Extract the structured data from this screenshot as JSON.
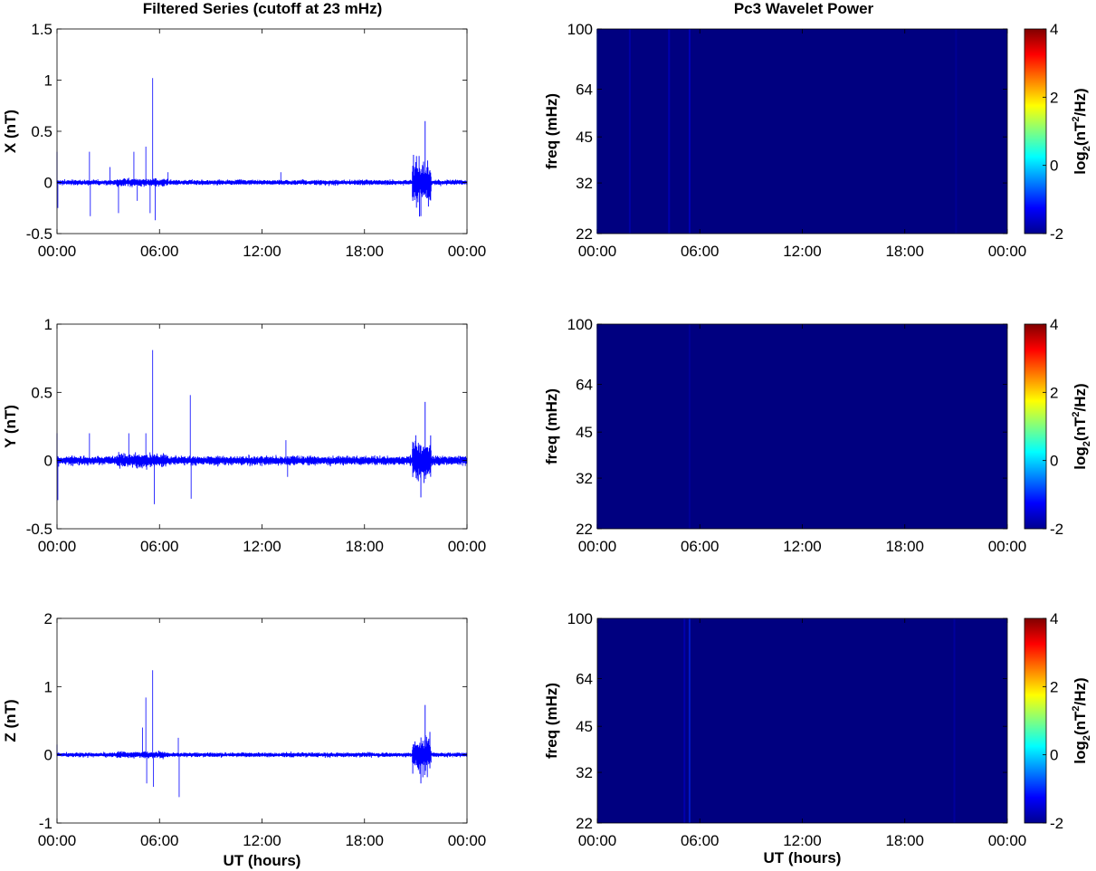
{
  "titles": {
    "left": "Filtered Series (cutoff at 23 mHz)",
    "right": "Pc3 Wavelet Power"
  },
  "xlabel": "UT (hours)",
  "colorbar": {
    "label_main": "log",
    "label_sub": "2",
    "label_paren_open": "(nT",
    "label_sup": "2",
    "label_tail": "/Hz)",
    "ticks": [
      "-2",
      "0",
      "2",
      "4"
    ],
    "range": [
      -2,
      4
    ],
    "colormap": "jet"
  },
  "colors": {
    "trace": "#0000ff",
    "background_power": "#00008f"
  },
  "chart_data": [
    {
      "type": "line",
      "panel": "X time series",
      "ylabel": "X (nT)",
      "xlim": [
        "00:00",
        "00:00"
      ],
      "xticks": [
        "00:00",
        "06:00",
        "12:00",
        "18:00",
        "00:00"
      ],
      "ylim": [
        -0.5,
        1.5
      ],
      "yticks": [
        "-0.5",
        "0",
        "0.5",
        "1",
        "1.5"
      ],
      "noise_amplitude": 0.03,
      "spikes": [
        {
          "t": 0.0,
          "v": 0.3
        },
        {
          "t": 0.05,
          "v": -0.25
        },
        {
          "t": 1.9,
          "v": 0.3
        },
        {
          "t": 1.95,
          "v": -0.33
        },
        {
          "t": 3.1,
          "v": 0.15
        },
        {
          "t": 3.6,
          "v": -0.3
        },
        {
          "t": 4.5,
          "v": 0.3
        },
        {
          "t": 4.7,
          "v": -0.18
        },
        {
          "t": 5.2,
          "v": 0.35
        },
        {
          "t": 5.45,
          "v": -0.3
        },
        {
          "t": 5.6,
          "v": 1.02
        },
        {
          "t": 5.75,
          "v": -0.37
        },
        {
          "t": 6.5,
          "v": 0.1
        },
        {
          "t": 13.1,
          "v": 0.1
        }
      ],
      "bursts": [
        {
          "t0": 20.8,
          "t1": 21.9,
          "amp": 0.35,
          "peak": 0.6,
          "trough": -0.33
        }
      ]
    },
    {
      "type": "line",
      "panel": "Y time series",
      "ylabel": "Y (nT)",
      "xlim": [
        "00:00",
        "00:00"
      ],
      "xticks": [
        "00:00",
        "06:00",
        "12:00",
        "18:00",
        "00:00"
      ],
      "ylim": [
        -0.5,
        1
      ],
      "yticks": [
        "-0.5",
        "0",
        "0.5",
        "1"
      ],
      "noise_amplitude": 0.04,
      "spikes": [
        {
          "t": 0.0,
          "v": 0.2
        },
        {
          "t": 0.05,
          "v": -0.29
        },
        {
          "t": 1.9,
          "v": 0.2
        },
        {
          "t": 4.2,
          "v": 0.2
        },
        {
          "t": 5.2,
          "v": 0.2
        },
        {
          "t": 5.6,
          "v": 0.81
        },
        {
          "t": 5.7,
          "v": -0.32
        },
        {
          "t": 7.8,
          "v": 0.48
        },
        {
          "t": 7.85,
          "v": -0.28
        },
        {
          "t": 13.4,
          "v": 0.15
        },
        {
          "t": 13.5,
          "v": -0.12
        }
      ],
      "bursts": [
        {
          "t0": 20.8,
          "t1": 21.9,
          "amp": 0.25,
          "peak": 0.43,
          "trough": -0.27
        }
      ]
    },
    {
      "type": "line",
      "panel": "Z time series",
      "ylabel": "Z (nT)",
      "xlabel": "UT (hours)",
      "xlim": [
        "00:00",
        "00:00"
      ],
      "xticks": [
        "00:00",
        "06:00",
        "12:00",
        "18:00",
        "00:00"
      ],
      "ylim": [
        -1,
        2
      ],
      "yticks": [
        "-1",
        "0",
        "1",
        "2"
      ],
      "noise_amplitude": 0.04,
      "spikes": [
        {
          "t": 0.0,
          "v": 0.15
        },
        {
          "t": 5.0,
          "v": 0.4
        },
        {
          "t": 5.2,
          "v": 0.84
        },
        {
          "t": 5.25,
          "v": -0.42
        },
        {
          "t": 5.6,
          "v": 1.24
        },
        {
          "t": 5.65,
          "v": -0.47
        },
        {
          "t": 7.1,
          "v": 0.25
        },
        {
          "t": 7.15,
          "v": -0.62
        }
      ],
      "bursts": [
        {
          "t0": 20.8,
          "t1": 21.9,
          "amp": 0.4,
          "peak": 0.73,
          "trough": -0.42
        }
      ]
    },
    {
      "type": "heatmap",
      "panel": "X wavelet power",
      "ylabel": "freq (mHz)",
      "yscale": "log",
      "xticks": [
        "00:00",
        "06:00",
        "12:00",
        "18:00",
        "00:00"
      ],
      "yticks": [
        "22",
        "32",
        "45",
        "64",
        "100"
      ],
      "ylim": [
        22,
        100
      ],
      "clim": [
        -2,
        4
      ],
      "background_value": -2,
      "streaks": [
        {
          "t": 0.0,
          "v": -1.1
        },
        {
          "t": 1.9,
          "v": -1.6
        },
        {
          "t": 4.2,
          "v": -1.5
        },
        {
          "t": 5.4,
          "v": -1.4
        },
        {
          "t": 21.0,
          "v": -1.8
        }
      ]
    },
    {
      "type": "heatmap",
      "panel": "Y wavelet power",
      "ylabel": "freq (mHz)",
      "yscale": "log",
      "xticks": [
        "00:00",
        "06:00",
        "12:00",
        "18:00",
        "00:00"
      ],
      "yticks": [
        "22",
        "32",
        "45",
        "64",
        "100"
      ],
      "ylim": [
        22,
        100
      ],
      "clim": [
        -2,
        4
      ],
      "background_value": -2,
      "streaks": [
        {
          "t": 0.0,
          "v": -1.5
        },
        {
          "t": 5.4,
          "v": -1.75
        }
      ]
    },
    {
      "type": "heatmap",
      "panel": "Z wavelet power",
      "ylabel": "freq (mHz)",
      "xlabel": "UT (hours)",
      "yscale": "log",
      "xticks": [
        "00:00",
        "06:00",
        "12:00",
        "18:00",
        "00:00"
      ],
      "yticks": [
        "22",
        "32",
        "45",
        "64",
        "100"
      ],
      "ylim": [
        22,
        100
      ],
      "clim": [
        -2,
        4
      ],
      "background_value": -2,
      "streaks": [
        {
          "t": 5.1,
          "v": -1.5
        },
        {
          "t": 5.4,
          "v": -1.0
        },
        {
          "t": 20.9,
          "v": -1.7
        }
      ]
    }
  ]
}
